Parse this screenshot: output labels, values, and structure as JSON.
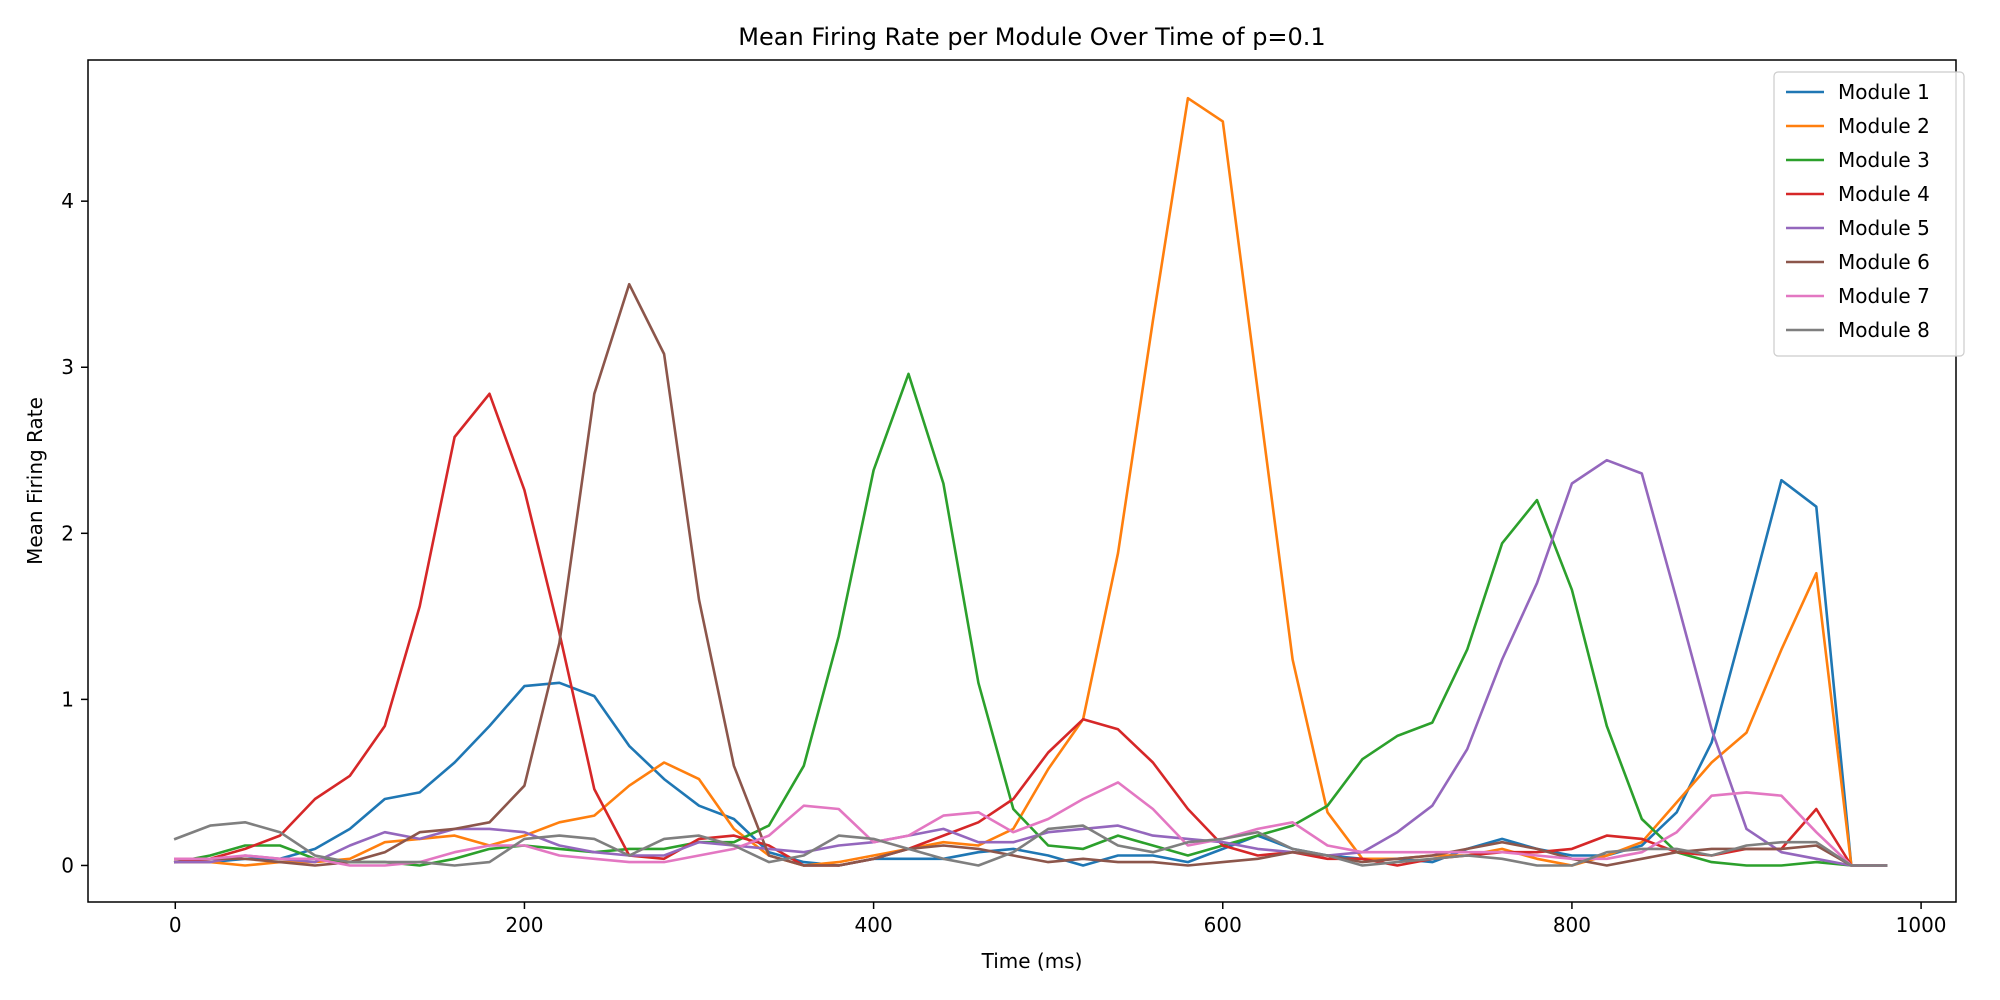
{
  "chart_data": {
    "type": "line",
    "title": "Mean Firing Rate per Module Over Time of p=0.1",
    "xlabel": "Time (ms)",
    "ylabel": "Mean Firing Rate",
    "xlim": [
      -50,
      1020
    ],
    "ylim": [
      -0.22,
      4.85
    ],
    "xticks": [
      0,
      200,
      400,
      600,
      800,
      1000
    ],
    "yticks": [
      0,
      1,
      2,
      3,
      4
    ],
    "grid": false,
    "legend_position": "top-right",
    "x": [
      0,
      20,
      40,
      60,
      80,
      100,
      120,
      140,
      160,
      180,
      200,
      220,
      240,
      260,
      280,
      300,
      320,
      340,
      360,
      380,
      400,
      420,
      440,
      460,
      480,
      500,
      520,
      540,
      560,
      580,
      600,
      620,
      640,
      660,
      680,
      700,
      720,
      740,
      760,
      780,
      800,
      820,
      840,
      860,
      880,
      900,
      920,
      940,
      960,
      980
    ],
    "series": [
      {
        "name": "Module 1",
        "color": "#1f77b4",
        "values": [
          0.02,
          0.02,
          0.04,
          0.04,
          0.1,
          0.22,
          0.4,
          0.44,
          0.62,
          0.84,
          1.08,
          1.1,
          1.02,
          0.72,
          0.52,
          0.36,
          0.28,
          0.08,
          0.02,
          0.0,
          0.04,
          0.04,
          0.04,
          0.08,
          0.1,
          0.06,
          0.0,
          0.06,
          0.06,
          0.02,
          0.1,
          0.18,
          0.1,
          0.06,
          0.04,
          0.04,
          0.02,
          0.1,
          0.16,
          0.1,
          0.06,
          0.06,
          0.12,
          0.32,
          0.74,
          1.52,
          2.32,
          2.16,
          0.0,
          0.0
        ]
      },
      {
        "name": "Module 2",
        "color": "#ff7f0e",
        "values": [
          0.02,
          0.02,
          0.0,
          0.02,
          0.02,
          0.04,
          0.14,
          0.16,
          0.18,
          0.12,
          0.18,
          0.26,
          0.3,
          0.48,
          0.62,
          0.52,
          0.22,
          0.06,
          0.0,
          0.02,
          0.06,
          0.1,
          0.14,
          0.12,
          0.22,
          0.58,
          0.88,
          1.88,
          3.28,
          4.62,
          4.48,
          2.86,
          1.24,
          0.32,
          0.04,
          0.04,
          0.06,
          0.06,
          0.1,
          0.04,
          0.0,
          0.06,
          0.14,
          0.38,
          0.62,
          0.8,
          1.3,
          1.76,
          0.0,
          0.0
        ]
      },
      {
        "name": "Module 3",
        "color": "#2ca02c",
        "values": [
          0.02,
          0.06,
          0.12,
          0.12,
          0.04,
          0.02,
          0.02,
          0.0,
          0.04,
          0.1,
          0.12,
          0.1,
          0.08,
          0.1,
          0.1,
          0.14,
          0.14,
          0.24,
          0.6,
          1.38,
          2.38,
          2.96,
          2.3,
          1.1,
          0.34,
          0.12,
          0.1,
          0.18,
          0.12,
          0.06,
          0.12,
          0.18,
          0.24,
          0.36,
          0.64,
          0.78,
          0.86,
          1.3,
          1.94,
          2.2,
          1.66,
          0.84,
          0.28,
          0.08,
          0.02,
          0.0,
          0.0,
          0.02,
          0.0,
          0.0
        ]
      },
      {
        "name": "Module 4",
        "color": "#d62728",
        "values": [
          0.02,
          0.04,
          0.1,
          0.18,
          0.4,
          0.54,
          0.84,
          1.56,
          2.58,
          2.84,
          2.26,
          1.4,
          0.46,
          0.06,
          0.04,
          0.16,
          0.18,
          0.12,
          0.0,
          0.0,
          0.04,
          0.1,
          0.18,
          0.26,
          0.4,
          0.68,
          0.88,
          0.82,
          0.62,
          0.34,
          0.12,
          0.06,
          0.08,
          0.04,
          0.04,
          0.0,
          0.04,
          0.06,
          0.08,
          0.08,
          0.1,
          0.18,
          0.16,
          0.08,
          0.06,
          0.1,
          0.1,
          0.34,
          0.0,
          0.0
        ]
      },
      {
        "name": "Module 5",
        "color": "#9467bd",
        "values": [
          0.02,
          0.02,
          0.06,
          0.04,
          0.02,
          0.12,
          0.2,
          0.16,
          0.22,
          0.22,
          0.2,
          0.12,
          0.08,
          0.06,
          0.06,
          0.14,
          0.12,
          0.1,
          0.08,
          0.12,
          0.14,
          0.18,
          0.22,
          0.14,
          0.14,
          0.2,
          0.22,
          0.24,
          0.18,
          0.16,
          0.14,
          0.1,
          0.08,
          0.06,
          0.08,
          0.2,
          0.36,
          0.7,
          1.24,
          1.7,
          2.3,
          2.44,
          2.36,
          1.6,
          0.82,
          0.22,
          0.08,
          0.04,
          0.0,
          0.0
        ]
      },
      {
        "name": "Module 6",
        "color": "#8c564b",
        "values": [
          0.04,
          0.04,
          0.04,
          0.02,
          0.0,
          0.02,
          0.08,
          0.2,
          0.22,
          0.26,
          0.48,
          1.34,
          2.84,
          3.5,
          3.08,
          1.6,
          0.6,
          0.06,
          0.0,
          0.0,
          0.04,
          0.1,
          0.12,
          0.1,
          0.06,
          0.02,
          0.04,
          0.02,
          0.02,
          0.0,
          0.02,
          0.04,
          0.08,
          0.06,
          0.02,
          0.04,
          0.06,
          0.1,
          0.14,
          0.1,
          0.04,
          0.0,
          0.04,
          0.08,
          0.1,
          0.1,
          0.1,
          0.12,
          0.0,
          0.0
        ]
      },
      {
        "name": "Module 7",
        "color": "#e377c2",
        "values": [
          0.04,
          0.04,
          0.06,
          0.04,
          0.04,
          0.0,
          0.0,
          0.02,
          0.08,
          0.12,
          0.12,
          0.06,
          0.04,
          0.02,
          0.02,
          0.06,
          0.1,
          0.18,
          0.36,
          0.34,
          0.14,
          0.18,
          0.3,
          0.32,
          0.2,
          0.28,
          0.4,
          0.5,
          0.34,
          0.12,
          0.16,
          0.22,
          0.26,
          0.12,
          0.08,
          0.08,
          0.08,
          0.08,
          0.08,
          0.06,
          0.04,
          0.04,
          0.08,
          0.2,
          0.42,
          0.44,
          0.42,
          0.2,
          0.0,
          0.0
        ]
      },
      {
        "name": "Module 8",
        "color": "#7f7f7f",
        "values": [
          0.16,
          0.24,
          0.26,
          0.2,
          0.06,
          0.02,
          0.02,
          0.02,
          0.0,
          0.02,
          0.16,
          0.18,
          0.16,
          0.06,
          0.16,
          0.18,
          0.12,
          0.02,
          0.06,
          0.18,
          0.16,
          0.1,
          0.04,
          0.0,
          0.08,
          0.22,
          0.24,
          0.12,
          0.08,
          0.14,
          0.16,
          0.2,
          0.1,
          0.06,
          0.0,
          0.02,
          0.04,
          0.06,
          0.04,
          0.0,
          0.0,
          0.08,
          0.1,
          0.1,
          0.06,
          0.12,
          0.14,
          0.14,
          0.0,
          0.0
        ]
      }
    ]
  }
}
